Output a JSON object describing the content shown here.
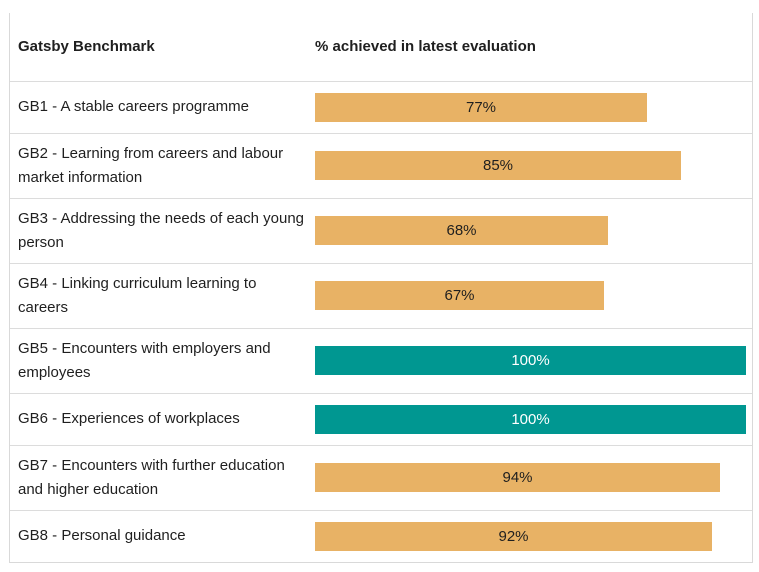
{
  "header": {
    "col1": "Gatsby Benchmark",
    "col2": "% achieved in latest evaluation"
  },
  "colors": {
    "below_full": "#e8b265",
    "full": "#009791"
  },
  "chart_data": {
    "type": "bar",
    "orientation": "horizontal",
    "categories": [
      "GB1 - A stable careers programme",
      "GB2 - Learning from careers and labour market information",
      "GB3 - Addressing the needs of each young person",
      "GB4 - Linking curriculum learning to careers",
      "GB5 - Encounters with employers and employees",
      "GB6 - Experiences of workplaces",
      "GB7 - Encounters with further education and higher education",
      "GB8 - Personal guidance"
    ],
    "values": [
      77,
      85,
      68,
      67,
      100,
      100,
      94,
      92
    ],
    "value_labels": [
      "77%",
      "85%",
      "68%",
      "67%",
      "100%",
      "100%",
      "94%",
      "92%"
    ],
    "xlim": [
      0,
      100
    ],
    "grid": false
  }
}
